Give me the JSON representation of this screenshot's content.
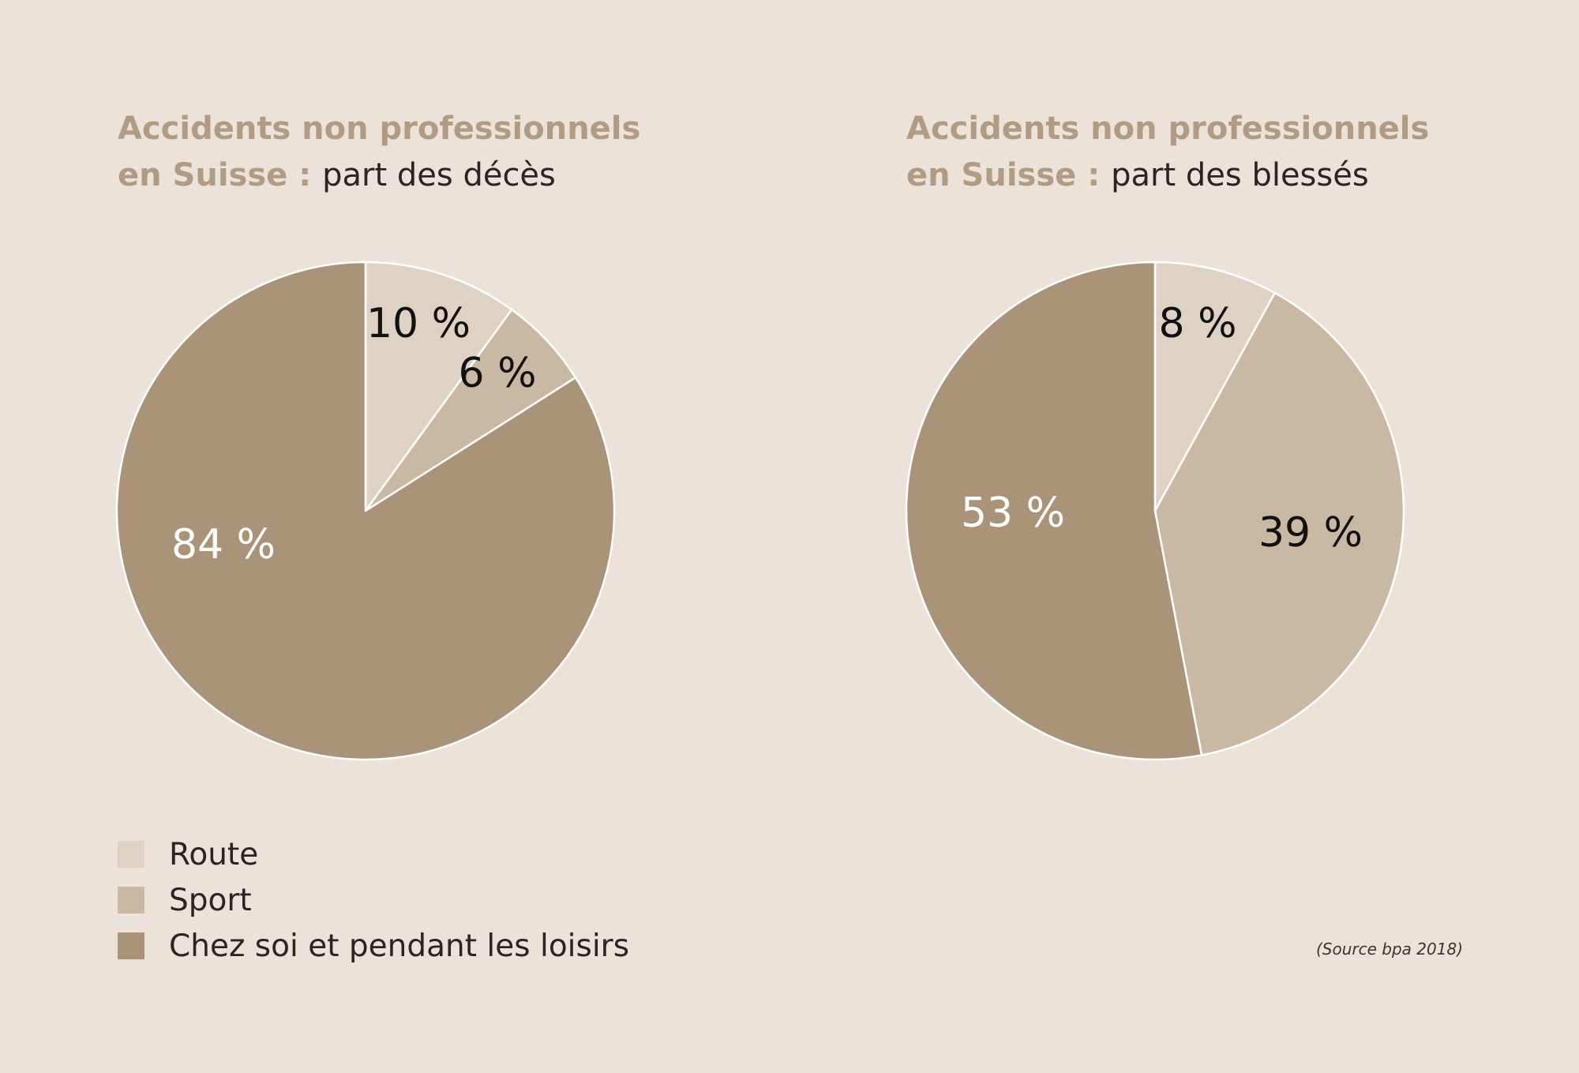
{
  "charts": [
    {
      "title_bold": "Accidents non professionnels",
      "title_bold2": "en Suisse",
      "title_sep": " : ",
      "title_rest": "part des décès"
    },
    {
      "title_bold": "Accidents non professionnels",
      "title_bold2": "en Suisse",
      "title_sep": " : ",
      "title_rest": "part des blessés"
    }
  ],
  "legend": [
    {
      "label": "Route",
      "color": "#ddd2c4"
    },
    {
      "label": "Sport",
      "color": "#c9b8a3"
    },
    {
      "label": "Chez soi et pendant les loisirs",
      "color": "#a9947a"
    }
  ],
  "source": "(Source bpa 2018)",
  "chart_data": [
    {
      "type": "pie",
      "title": "Accidents non professionnels en Suisse : part des décès",
      "categories": [
        "Route",
        "Sport",
        "Chez soi et pendant les loisirs"
      ],
      "values": [
        10,
        6,
        84
      ],
      "labels": [
        "10 %",
        "6 %",
        "84 %"
      ],
      "colors": [
        "#ddd2c4",
        "#c9b8a3",
        "#a9947a"
      ],
      "label_colors": [
        "#111111",
        "#111111",
        "#ffffff"
      ]
    },
    {
      "type": "pie",
      "title": "Accidents non professionnels en Suisse : part des blessés",
      "categories": [
        "Route",
        "Sport",
        "Chez soi et pendant les loisirs"
      ],
      "values": [
        8,
        39,
        53
      ],
      "labels": [
        "8 %",
        "39 %",
        "53 %"
      ],
      "colors": [
        "#ddd2c4",
        "#c9b8a3",
        "#a9947a"
      ],
      "label_colors": [
        "#111111",
        "#111111",
        "#ffffff"
      ]
    }
  ]
}
